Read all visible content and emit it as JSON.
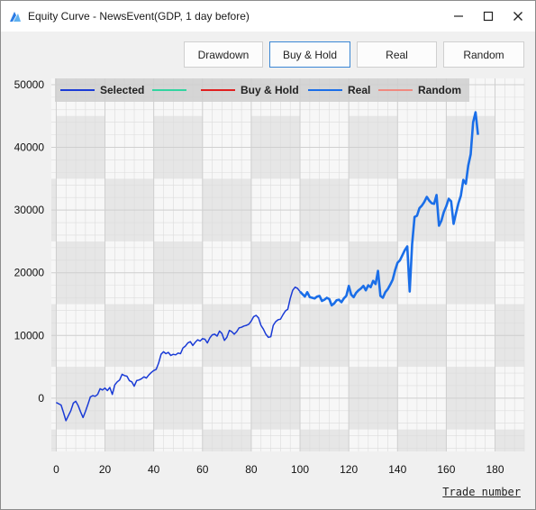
{
  "window": {
    "title": "Equity Curve - NewsEvent(GDP, 1 day before)",
    "icons": {
      "app": "app-logo-icon",
      "minimize": "minimize-icon",
      "maximize": "maximize-icon",
      "close": "close-icon"
    }
  },
  "toolbar": {
    "drawdown_label": "Drawdown",
    "buyhold_label": "Buy & Hold",
    "real_label": "Real",
    "random_label": "Random",
    "active": "Buy & Hold"
  },
  "legend": [
    {
      "name": "Selected",
      "color": "#1a3bd6"
    },
    {
      "name": "",
      "color": "#33d4a0"
    },
    {
      "name": "Buy & Hold",
      "color": "#e02020"
    },
    {
      "name": "Real",
      "color": "#1a6ee8"
    },
    {
      "name": "Random",
      "color": "#f08a80"
    }
  ],
  "x_axis_title": "Trade number",
  "chart_data": {
    "type": "line",
    "xlabel": "Trade number",
    "ylabel": "",
    "xlim": [
      -2,
      192
    ],
    "ylim": [
      -8500,
      51000
    ],
    "x_ticks": [
      0,
      20,
      40,
      60,
      80,
      100,
      120,
      140,
      160,
      180
    ],
    "y_ticks": [
      0,
      10000,
      20000,
      30000,
      40000,
      50000
    ],
    "grid": true,
    "legend_position": "top",
    "series": [
      {
        "name": "Selected",
        "color": "#1a3bd6",
        "x": [
          0,
          2,
          3,
          4,
          5,
          6,
          7,
          8,
          9,
          10,
          11,
          12,
          13,
          14,
          15,
          16,
          17,
          18,
          19,
          20,
          21,
          22,
          23,
          24,
          25,
          26,
          27,
          28,
          29,
          30,
          31,
          32,
          33,
          34,
          35,
          36,
          37,
          38,
          39,
          40,
          41,
          42,
          43,
          44,
          45,
          46,
          47,
          48,
          49,
          50,
          51,
          52,
          53,
          54,
          55,
          56,
          57,
          58,
          59,
          60,
          61,
          62,
          63,
          64,
          65,
          66,
          67,
          68,
          69,
          70,
          71,
          72,
          73,
          74,
          75,
          76,
          77,
          78,
          79,
          80,
          81,
          82,
          83,
          84,
          85,
          86,
          87,
          88,
          89,
          90,
          91,
          92,
          93,
          94,
          95,
          96,
          97,
          98,
          99,
          100
        ],
        "y": [
          -700,
          -1100,
          -2300,
          -3600,
          -2800,
          -2000,
          -800,
          -500,
          -1200,
          -2200,
          -3100,
          -2100,
          -1000,
          200,
          400,
          300,
          600,
          1500,
          1300,
          1600,
          1200,
          1700,
          600,
          2100,
          2600,
          2900,
          3800,
          3600,
          3500,
          2800,
          2600,
          1900,
          2800,
          2900,
          3100,
          3400,
          3200,
          3700,
          4100,
          4400,
          4600,
          5600,
          7000,
          7400,
          7100,
          7300,
          6800,
          7000,
          6900,
          7200,
          7100,
          8000,
          8300,
          8800,
          9000,
          8400,
          8900,
          9300,
          9100,
          9500,
          9400,
          8800,
          9600,
          10100,
          10200,
          9900,
          10700,
          10300,
          9200,
          9700,
          10800,
          10600,
          10200,
          10600,
          11200,
          11300,
          11500,
          11600,
          11800,
          12300,
          13000,
          13200,
          12800,
          11600,
          11000,
          10200,
          9700,
          9800,
          11600,
          12200,
          12500,
          12600,
          13300,
          13900,
          14200,
          15900,
          17200,
          17700,
          17500,
          17000
        ]
      },
      {
        "name": "Real",
        "color": "#1a6ee8",
        "x": [
          100,
          101,
          102,
          103,
          104,
          105,
          106,
          107,
          108,
          109,
          110,
          111,
          112,
          113,
          114,
          115,
          116,
          117,
          118,
          119,
          120,
          121,
          122,
          123,
          124,
          125,
          126,
          127,
          128,
          129,
          130,
          131,
          132,
          133,
          134,
          135,
          136,
          137,
          138,
          139,
          140,
          141,
          142,
          143,
          144,
          145,
          146,
          147,
          148,
          149,
          150,
          151,
          152,
          153,
          154,
          155,
          156,
          157,
          158,
          159,
          160,
          161,
          162,
          163,
          164,
          165,
          166,
          167,
          168,
          169,
          170,
          171,
          172,
          173
        ],
        "y": [
          17000,
          16600,
          16200,
          16900,
          16100,
          16000,
          15900,
          16200,
          16300,
          15500,
          15700,
          16000,
          15800,
          14800,
          15100,
          15600,
          15700,
          15300,
          15900,
          16300,
          17900,
          16500,
          16100,
          16800,
          17200,
          17500,
          17900,
          17200,
          18000,
          17700,
          18700,
          18200,
          20300,
          16300,
          16000,
          16900,
          17400,
          18100,
          18900,
          20400,
          21600,
          22000,
          22800,
          23600,
          24200,
          17000,
          24600,
          28900,
          29100,
          30300,
          30700,
          31300,
          32100,
          31500,
          31100,
          31000,
          32400,
          27500,
          28300,
          29700,
          30600,
          31800,
          31400,
          27800,
          29500,
          31100,
          32300,
          34800,
          34200,
          37100,
          38900,
          44000,
          45600,
          42000
        ]
      }
    ]
  }
}
